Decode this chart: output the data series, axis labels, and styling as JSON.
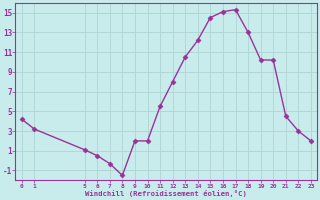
{
  "xlabel": "Windchill (Refroidissement éolien,°C)",
  "bg_color": "#c8ecec",
  "line_color": "#993399",
  "grid_color": "#b0d4d4",
  "x_ticks": [
    0,
    1,
    5,
    6,
    7,
    8,
    9,
    10,
    11,
    12,
    13,
    14,
    15,
    16,
    17,
    18,
    19,
    20,
    21,
    22,
    23
  ],
  "series1_x": [
    0,
    1,
    5,
    6,
    7,
    8,
    9,
    10,
    11,
    12,
    13,
    14,
    15,
    16,
    17,
    18,
    19,
    20,
    21,
    22,
    23
  ],
  "series1_y": [
    4.2,
    3.2,
    1.1,
    0.5,
    -0.3,
    -1.5,
    2.0,
    2.0,
    5.5,
    8.0,
    10.5,
    12.2,
    14.5,
    15.1,
    15.3,
    13.0,
    10.2,
    10.2,
    4.5,
    3.0,
    2.0
  ],
  "ylim": [
    -2,
    16
  ],
  "xlim": [
    -0.5,
    23.5
  ],
  "yticks": [
    -1,
    1,
    3,
    5,
    7,
    9,
    11,
    13,
    15
  ],
  "marker": "D",
  "markersize": 2.5,
  "linewidth": 1.0
}
